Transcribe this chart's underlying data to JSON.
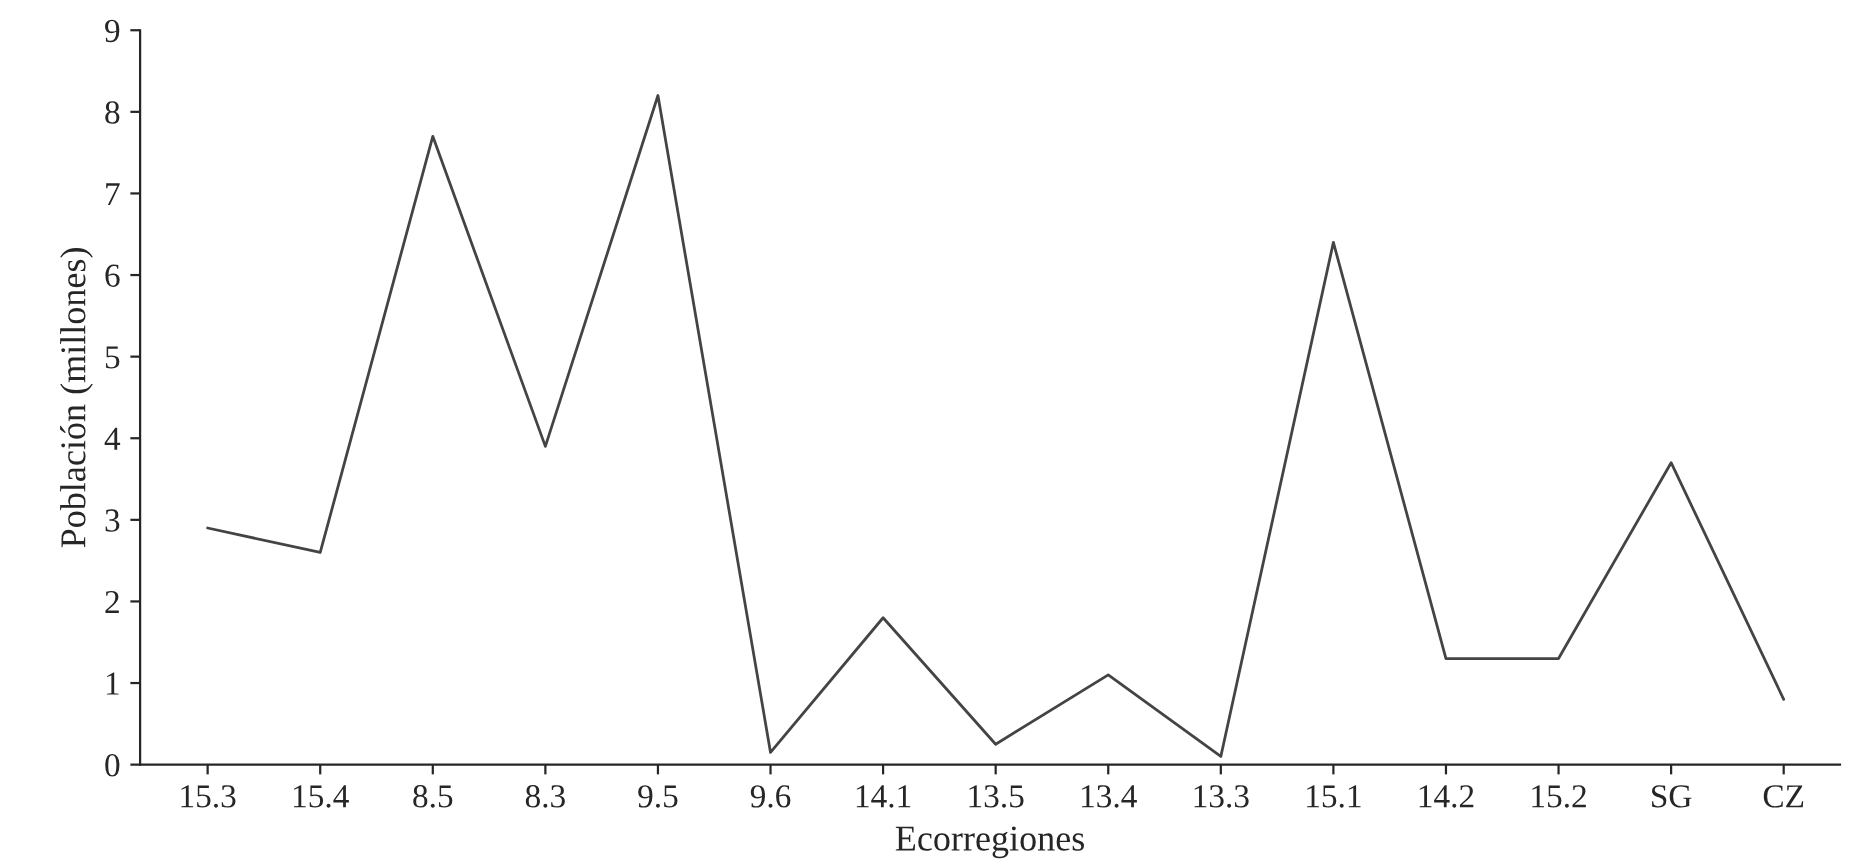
{
  "chart_data": {
    "type": "line",
    "xlabel": "Ecorregiones",
    "ylabel": "Población (millones)",
    "categories": [
      "15.3",
      "15.4",
      "8.5",
      "8.3",
      "9.5",
      "9.6",
      "14.1",
      "13.5",
      "13.4",
      "13.3",
      "15.1",
      "14.2",
      "15.2",
      "SG",
      "CZ"
    ],
    "series": [
      {
        "color": "#444444",
        "values": [
          2.9,
          2.6,
          7.7,
          3.9,
          8.2,
          0.15,
          1.8,
          0.25,
          1.1,
          0.1,
          6.4,
          1.3,
          1.3,
          3.7,
          0.8
        ]
      }
    ],
    "ylim": [
      0,
      9
    ],
    "yticks": [
      0,
      1,
      2,
      3,
      4,
      5,
      6,
      7,
      8,
      9
    ],
    "grid": false,
    "legend": false,
    "marker": "none",
    "line_style": "solid"
  }
}
